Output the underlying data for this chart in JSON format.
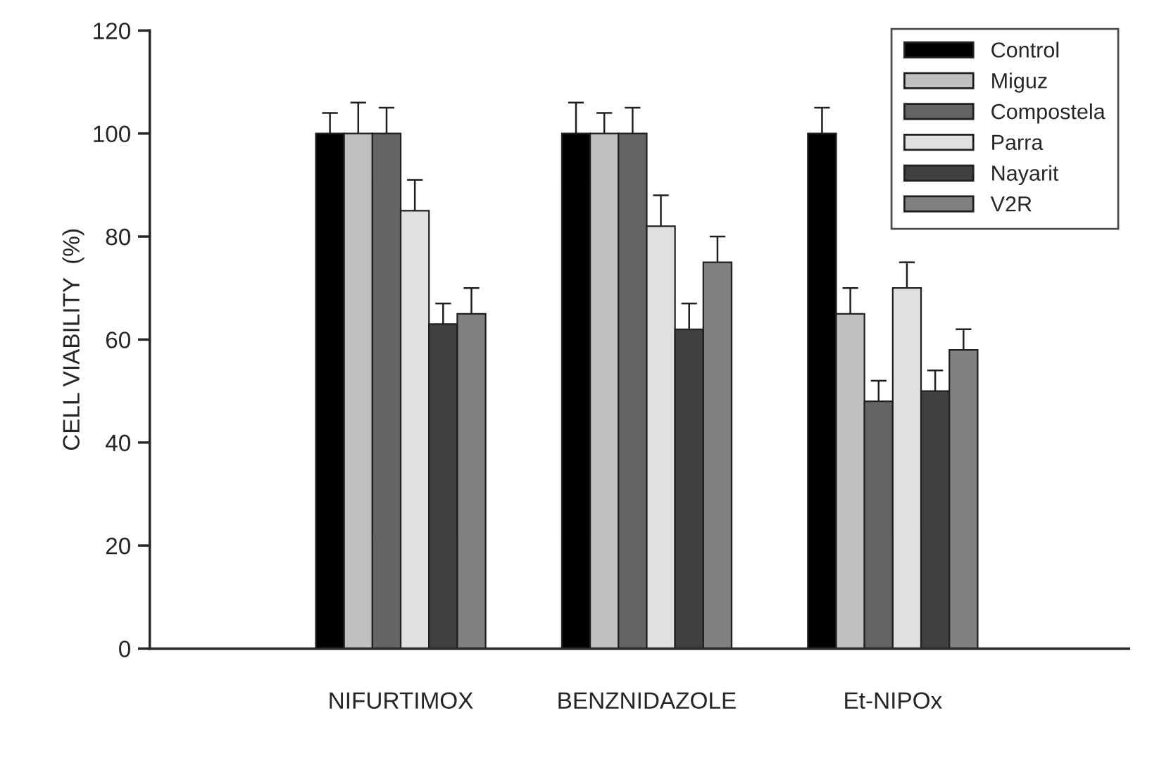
{
  "chart_data": {
    "type": "bar",
    "ylabel": "CELL VIABILITY  (%)",
    "categories": [
      "NIFURTIMOX",
      "BENZNIDAZOLE",
      "Et-NIPOx"
    ],
    "series": [
      {
        "name": "Control",
        "color": "#000000",
        "values": [
          100,
          100,
          100
        ],
        "errors": [
          4,
          6,
          5
        ]
      },
      {
        "name": "Miguz",
        "color": "#c0c0c0",
        "values": [
          100,
          100,
          65
        ],
        "errors": [
          6,
          4,
          5
        ]
      },
      {
        "name": "Compostela",
        "color": "#646464",
        "values": [
          100,
          100,
          48
        ],
        "errors": [
          5,
          5,
          4
        ]
      },
      {
        "name": "Parra",
        "color": "#e0e0e0",
        "values": [
          85,
          82,
          70
        ],
        "errors": [
          6,
          6,
          5
        ]
      },
      {
        "name": "Nayarit",
        "color": "#404040",
        "values": [
          63,
          62,
          50
        ],
        "errors": [
          4,
          5,
          4
        ]
      },
      {
        "name": "V2R",
        "color": "#808080",
        "values": [
          65,
          75,
          58
        ],
        "errors": [
          5,
          5,
          4
        ]
      }
    ],
    "ylim": [
      0,
      120
    ],
    "yticks": [
      0,
      20,
      40,
      60,
      80,
      100,
      120
    ],
    "grid": false,
    "legend": "top right"
  }
}
